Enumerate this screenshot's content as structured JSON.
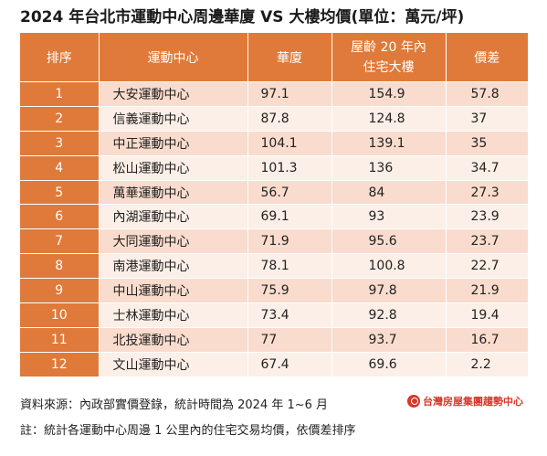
{
  "title": "2024 年台北市運動中心周邊華廈 VS 大樓均價(單位：萬元/坪)",
  "table": {
    "headers": {
      "rank": "排序",
      "center": "運動中心",
      "huaxia": "華廈",
      "building_line1": "屋齡 20 年內",
      "building_line2": "住宅大樓",
      "diff": "價差"
    },
    "rows": [
      {
        "rank": "1",
        "center": "大安運動中心",
        "huaxia": "97.1",
        "building": "154.9",
        "diff": "57.8"
      },
      {
        "rank": "2",
        "center": "信義運動中心",
        "huaxia": "87.8",
        "building": "124.8",
        "diff": "37"
      },
      {
        "rank": "3",
        "center": "中正運動中心",
        "huaxia": "104.1",
        "building": "139.1",
        "diff": "35"
      },
      {
        "rank": "4",
        "center": "松山運動中心",
        "huaxia": "101.3",
        "building": "136",
        "diff": "34.7"
      },
      {
        "rank": "5",
        "center": "萬華運動中心",
        "huaxia": "56.7",
        "building": "84",
        "diff": "27.3"
      },
      {
        "rank": "6",
        "center": "內湖運動中心",
        "huaxia": "69.1",
        "building": "93",
        "diff": "23.9"
      },
      {
        "rank": "7",
        "center": "大同運動中心",
        "huaxia": "71.9",
        "building": "95.6",
        "diff": "23.7"
      },
      {
        "rank": "8",
        "center": "南港運動中心",
        "huaxia": "78.1",
        "building": "100.8",
        "diff": "22.7"
      },
      {
        "rank": "9",
        "center": "中山運動中心",
        "huaxia": "75.9",
        "building": "97.8",
        "diff": "21.9"
      },
      {
        "rank": "10",
        "center": "士林運動中心",
        "huaxia": "73.4",
        "building": "92.8",
        "diff": "19.4"
      },
      {
        "rank": "11",
        "center": "北投運動中心",
        "huaxia": "77",
        "building": "93.7",
        "diff": "16.7"
      },
      {
        "rank": "12",
        "center": "文山運動中心",
        "huaxia": "67.4",
        "building": "69.6",
        "diff": "2.2"
      }
    ]
  },
  "footer": {
    "source": "資料來源：內政部實價登錄，統計時間為 2024 年 1~6 月",
    "note": "註：統計各運動中心周邊 1 公里內的住宅交易均價，依價差排序",
    "logo_text": "台灣房屋集團趨勢中心"
  },
  "colors": {
    "header_bg": "#e07a3a",
    "row_odd": "#f9dccd",
    "row_even": "#fcefe7",
    "logo": "#d9372b"
  }
}
